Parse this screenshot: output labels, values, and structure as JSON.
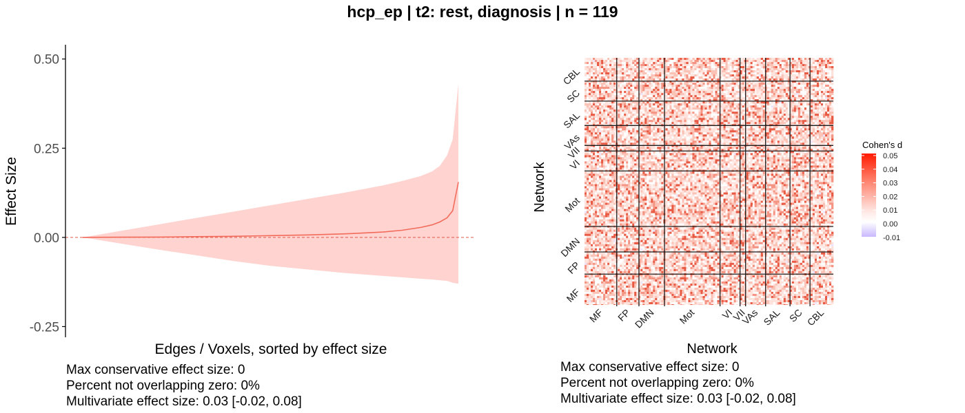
{
  "title": "hcp_ep | t2: rest, diagnosis | n = 119",
  "colors": {
    "ci_fill": "#ffd3cf",
    "line": "#f26b5b",
    "zero_line": "#e0574b",
    "heat_pos": "#ff1a00",
    "heat_neg": "#c9b8ff"
  },
  "chart_data": [
    {
      "type": "area",
      "title": "",
      "xlabel": "Edges / Voxels, sorted by effect size",
      "ylabel": "Effect Size",
      "ylim": [
        -0.28,
        0.54
      ],
      "yticks": [
        0.5,
        0.25,
        0.0,
        -0.25
      ],
      "ytick_labels": [
        "0.50",
        "0.25",
        "0.00",
        "-0.25"
      ],
      "x_relative": [
        0,
        0.1,
        0.2,
        0.3,
        0.4,
        0.5,
        0.6,
        0.7,
        0.8,
        0.85,
        0.9,
        0.93,
        0.95,
        0.97,
        0.985,
        1.0
      ],
      "series": [
        {
          "values": [
            0.0,
            0.0005,
            0.001,
            0.002,
            0.003,
            0.005,
            0.007,
            0.01,
            0.015,
            0.02,
            0.028,
            0.035,
            0.043,
            0.055,
            0.075,
            0.155
          ]
        }
      ],
      "ci_upper": [
        0.0,
        0.018,
        0.036,
        0.054,
        0.072,
        0.09,
        0.108,
        0.126,
        0.146,
        0.158,
        0.172,
        0.185,
        0.2,
        0.23,
        0.275,
        0.43
      ],
      "ci_lower": [
        0.0,
        -0.017,
        -0.034,
        -0.05,
        -0.066,
        -0.08,
        -0.09,
        -0.1,
        -0.108,
        -0.112,
        -0.116,
        -0.118,
        -0.12,
        -0.122,
        -0.127,
        -0.13
      ],
      "reference_line": 0,
      "grid": false
    },
    {
      "type": "heatmap",
      "xlabel": "Network",
      "ylabel": "Network",
      "networks": [
        "MF",
        "FP",
        "DMN",
        "Mot",
        "VI",
        "VII",
        "VAs",
        "SAL",
        "SC",
        "CBL"
      ],
      "network_sizes": [
        29,
        20,
        23,
        50,
        18,
        5,
        18,
        22,
        18,
        21
      ],
      "legend_title": "Cohen's d",
      "legend_ticks": [
        "0.05",
        "0.04",
        "0.03",
        "0.02",
        "0.01",
        "0.00",
        "-0.01"
      ],
      "value_range": [
        -0.01,
        0.05
      ],
      "legend_position": "right"
    }
  ],
  "annotations_left": [
    "Max conservative effect size: 0",
    "Percent not overlapping zero: 0%",
    "Multivariate effect size: 0.03 [-0.02, 0.08]"
  ],
  "annotations_right": [
    "Max conservative effect size: 0",
    "Percent not overlapping zero: 0%",
    "Multivariate effect size: 0.03 [-0.02, 0.08]"
  ]
}
